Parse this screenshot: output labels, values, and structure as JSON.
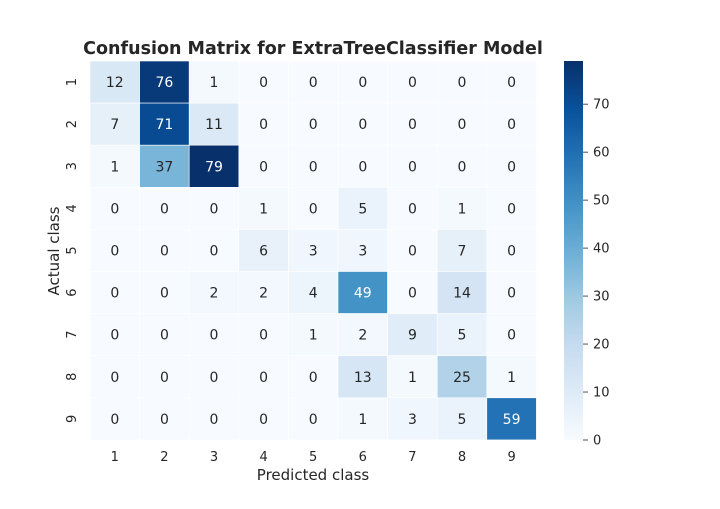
{
  "chart_data": {
    "type": "heatmap",
    "title": "Confusion Matrix for ExtraTreeClassifier Model",
    "xlabel": "Predicted class",
    "ylabel": "Actual class",
    "x_categories": [
      "1",
      "2",
      "3",
      "4",
      "5",
      "6",
      "7",
      "8",
      "9"
    ],
    "y_categories": [
      "1",
      "2",
      "3",
      "4",
      "5",
      "6",
      "7",
      "8",
      "9"
    ],
    "values": [
      [
        12,
        76,
        1,
        0,
        0,
        0,
        0,
        0,
        0
      ],
      [
        7,
        71,
        11,
        0,
        0,
        0,
        0,
        0,
        0
      ],
      [
        1,
        37,
        79,
        0,
        0,
        0,
        0,
        0,
        0
      ],
      [
        0,
        0,
        0,
        1,
        0,
        5,
        0,
        1,
        0
      ],
      [
        0,
        0,
        0,
        6,
        3,
        3,
        0,
        7,
        0
      ],
      [
        0,
        0,
        2,
        2,
        4,
        49,
        0,
        14,
        0
      ],
      [
        0,
        0,
        0,
        0,
        1,
        2,
        9,
        5,
        0
      ],
      [
        0,
        0,
        0,
        0,
        0,
        13,
        1,
        25,
        1
      ],
      [
        0,
        0,
        0,
        0,
        0,
        1,
        3,
        5,
        59
      ]
    ],
    "colorbar": {
      "colormap": "Blues",
      "range": [
        0,
        79
      ],
      "ticks": [
        "0",
        "10",
        "20",
        "30",
        "40",
        "50",
        "60",
        "70"
      ]
    }
  }
}
